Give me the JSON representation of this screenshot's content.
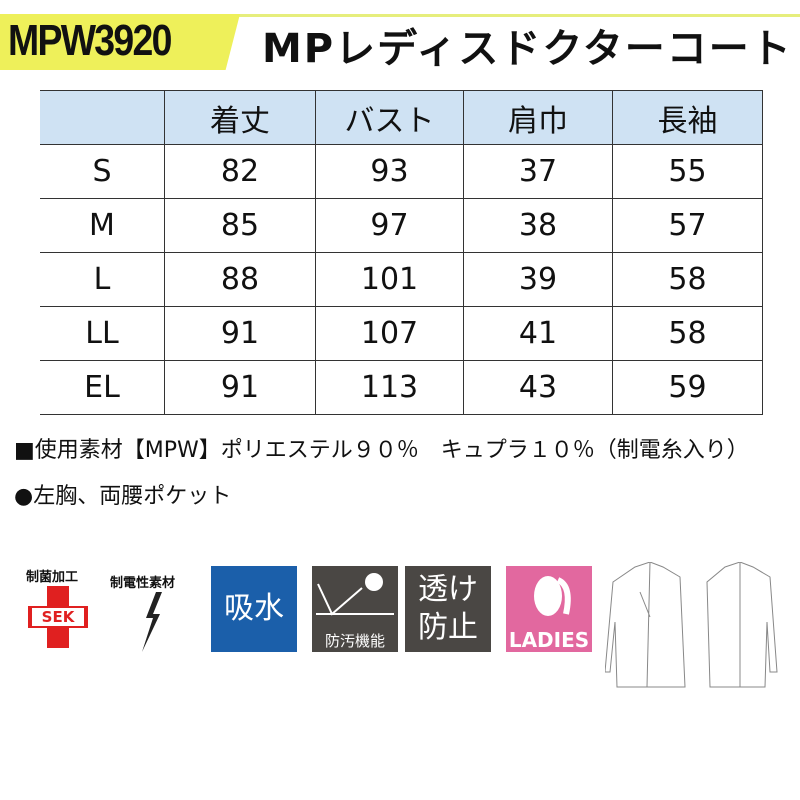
{
  "header": {
    "code": "MPW3920",
    "title": "MPレディスドクターコート"
  },
  "table": {
    "columns": [
      "",
      "着丈",
      "バスト",
      "肩巾",
      "長袖"
    ],
    "rows": [
      [
        "S",
        "82",
        "93",
        "37",
        "55"
      ],
      [
        "M",
        "85",
        "97",
        "38",
        "57"
      ],
      [
        "L",
        "88",
        "101",
        "39",
        "58"
      ],
      [
        "LL",
        "91",
        "107",
        "41",
        "58"
      ],
      [
        "EL",
        "91",
        "113",
        "43",
        "59"
      ]
    ]
  },
  "notes": [
    "■使用素材【MPW】ポリエステル９０％　キュプラ１０％（制電糸入り）",
    "●左胸、両腰ポケット"
  ],
  "features": {
    "antibacterial_label": "制菌加工",
    "sek": "SEK",
    "antistatic_label": "制電性素材",
    "absorb": "吸水",
    "stain_label": "防汚機能",
    "seethrough": "透け防止",
    "ladies": "LADIES"
  },
  "colors": {
    "badge": "#eef05a",
    "header_bg": "#cfe2f3",
    "absorb": "#1b5faa",
    "stain": "#4a4744",
    "ladies": "#e2689f",
    "sek_red": "#e02020"
  }
}
